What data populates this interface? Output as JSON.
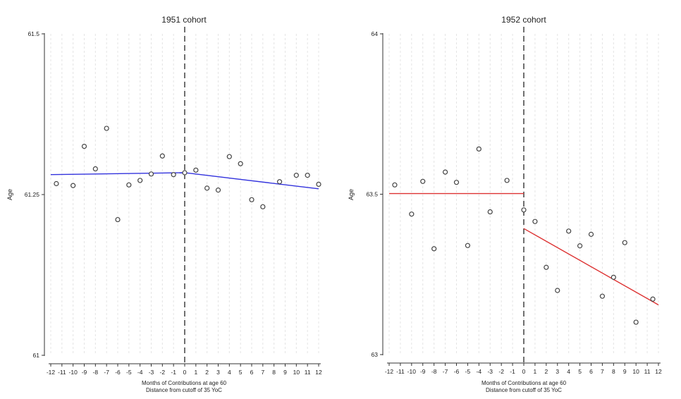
{
  "chart_data": [
    {
      "type": "scatter",
      "title": "1951 cohort",
      "xlabel_line1": "Months of Contributions at age 60",
      "xlabel_line2": "Distance from cutoff of 35 YoC",
      "ylabel": "Age",
      "xlim": [
        -12,
        12
      ],
      "ylim": [
        61,
        61.5
      ],
      "x_ticks": [
        -12,
        -11,
        -10,
        -9,
        -8,
        -7,
        -6,
        -5,
        -4,
        -3,
        -2,
        -1,
        0,
        1,
        2,
        3,
        4,
        5,
        6,
        7,
        8,
        9,
        10,
        11,
        12
      ],
      "x_tick_labels": [
        "-12",
        "-11",
        "-10",
        "-9",
        "-8",
        "-7",
        "-6",
        "-5",
        "-4",
        "-3",
        "-2",
        "-1",
        "0",
        "1",
        "2",
        "3",
        "4",
        "5",
        "6",
        "7",
        "8",
        "9",
        "10",
        "11",
        "12"
      ],
      "y_ticks": [
        61,
        61.25,
        61.5
      ],
      "y_tick_labels": [
        "61",
        "61.25",
        "61.5"
      ],
      "cutoff": 0,
      "grid": true,
      "fit_color": "#3333dd",
      "points": [
        {
          "x": -11.5,
          "y": 61.267
        },
        {
          "x": -10,
          "y": 61.264
        },
        {
          "x": -9,
          "y": 61.325
        },
        {
          "x": -8,
          "y": 61.29
        },
        {
          "x": -7,
          "y": 61.353
        },
        {
          "x": -6,
          "y": 61.211
        },
        {
          "x": -5,
          "y": 61.265
        },
        {
          "x": -4,
          "y": 61.272
        },
        {
          "x": -3,
          "y": 61.282
        },
        {
          "x": -2,
          "y": 61.31
        },
        {
          "x": -1,
          "y": 61.281
        },
        {
          "x": 0,
          "y": 61.284
        },
        {
          "x": 1,
          "y": 61.288
        },
        {
          "x": 2,
          "y": 61.26
        },
        {
          "x": 3,
          "y": 61.257
        },
        {
          "x": 4,
          "y": 61.309
        },
        {
          "x": 5,
          "y": 61.298
        },
        {
          "x": 6,
          "y": 61.242
        },
        {
          "x": 7,
          "y": 61.231
        },
        {
          "x": 8.5,
          "y": 61.27
        },
        {
          "x": 10,
          "y": 61.28
        },
        {
          "x": 11,
          "y": 61.28
        },
        {
          "x": 12,
          "y": 61.266
        }
      ],
      "fit_segments": [
        {
          "x": [
            -12,
            0
          ],
          "y": [
            61.281,
            61.284
          ]
        },
        {
          "x": [
            0,
            12
          ],
          "y": [
            61.284,
            61.259
          ]
        }
      ]
    },
    {
      "type": "scatter",
      "title": "1952 cohort",
      "xlabel_line1": "Months of Contributions at age 60",
      "xlabel_line2": "Distance from cutoff of 35 YoC",
      "ylabel": "Age",
      "xlim": [
        -12,
        12
      ],
      "ylim": [
        63,
        64
      ],
      "x_ticks": [
        -12,
        -11,
        -10,
        -9,
        -8,
        -7,
        -6,
        -5,
        -4,
        -3,
        -2,
        -1,
        0,
        1,
        2,
        3,
        4,
        5,
        6,
        7,
        8,
        9,
        10,
        11,
        12
      ],
      "x_tick_labels": [
        "-12",
        "-11",
        "-10",
        "-9",
        "-8",
        "-7",
        "-6",
        "-5",
        "-4",
        "-3",
        "-2",
        "-1",
        "0",
        "1",
        "2",
        "3",
        "4",
        "5",
        "6",
        "7",
        "8",
        "9",
        "10",
        "11",
        "12"
      ],
      "y_ticks": [
        63,
        63.5,
        64
      ],
      "y_tick_labels": [
        "63",
        "63.5",
        "64"
      ],
      "cutoff": 0,
      "grid": true,
      "fit_color": "#dd3333",
      "points": [
        {
          "x": -11.5,
          "y": 63.529
        },
        {
          "x": -10,
          "y": 63.438
        },
        {
          "x": -9,
          "y": 63.54
        },
        {
          "x": -8,
          "y": 63.33
        },
        {
          "x": -7,
          "y": 63.569
        },
        {
          "x": -6,
          "y": 63.537
        },
        {
          "x": -5,
          "y": 63.34
        },
        {
          "x": -4,
          "y": 63.641
        },
        {
          "x": -3,
          "y": 63.445
        },
        {
          "x": -1.5,
          "y": 63.543
        },
        {
          "x": 0,
          "y": 63.451
        },
        {
          "x": 1,
          "y": 63.415
        },
        {
          "x": 2,
          "y": 63.272
        },
        {
          "x": 3,
          "y": 63.2
        },
        {
          "x": 4,
          "y": 63.385
        },
        {
          "x": 5,
          "y": 63.339
        },
        {
          "x": 6,
          "y": 63.375
        },
        {
          "x": 7,
          "y": 63.182
        },
        {
          "x": 8,
          "y": 63.241
        },
        {
          "x": 9,
          "y": 63.349
        },
        {
          "x": 10,
          "y": 63.101
        },
        {
          "x": 11.5,
          "y": 63.173
        }
      ],
      "fit_segments": [
        {
          "x": [
            -12,
            0
          ],
          "y": [
            63.502,
            63.502
          ]
        },
        {
          "x": [
            0,
            12
          ],
          "y": [
            63.393,
            63.155
          ]
        }
      ]
    }
  ]
}
